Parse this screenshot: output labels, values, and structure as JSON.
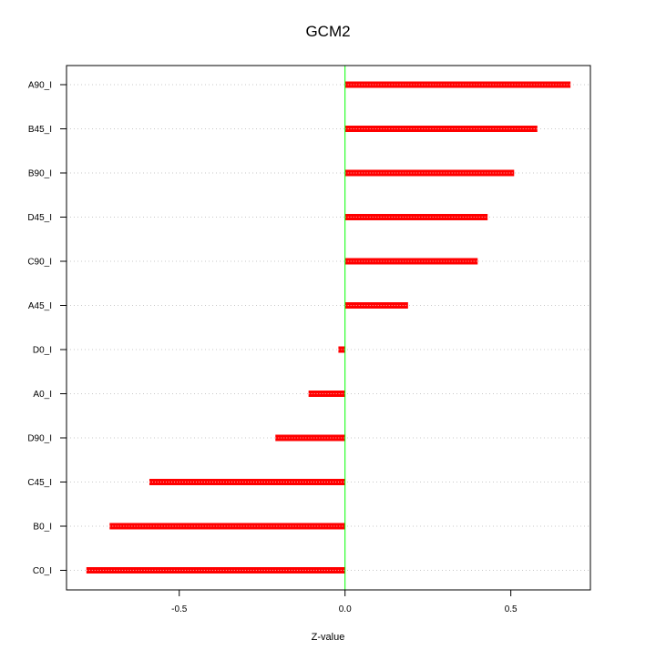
{
  "chart_data": {
    "type": "bar",
    "orientation": "horizontal",
    "title": "GCM2",
    "xlabel": "Z-value",
    "ylabel": "",
    "categories": [
      "A90_I",
      "B45_I",
      "B90_I",
      "D45_I",
      "C90_I",
      "A45_I",
      "D0_I",
      "A0_I",
      "D90_I",
      "C45_I",
      "B0_I",
      "C0_I"
    ],
    "values": [
      0.68,
      0.58,
      0.51,
      0.43,
      0.4,
      0.19,
      -0.02,
      -0.11,
      -0.21,
      -0.59,
      -0.71,
      -0.78
    ],
    "xlim": [
      -0.84,
      0.74
    ],
    "xticks": [
      -0.5,
      0.0,
      0.5
    ],
    "xtick_labels": [
      "-0.5",
      "0.0",
      "0.5"
    ],
    "grid": "horizontal dotted",
    "colors": {
      "bar": "#ff0000",
      "zero_line": "#00ff00",
      "grid": "#c8c8c8",
      "axis": "#000000"
    }
  }
}
